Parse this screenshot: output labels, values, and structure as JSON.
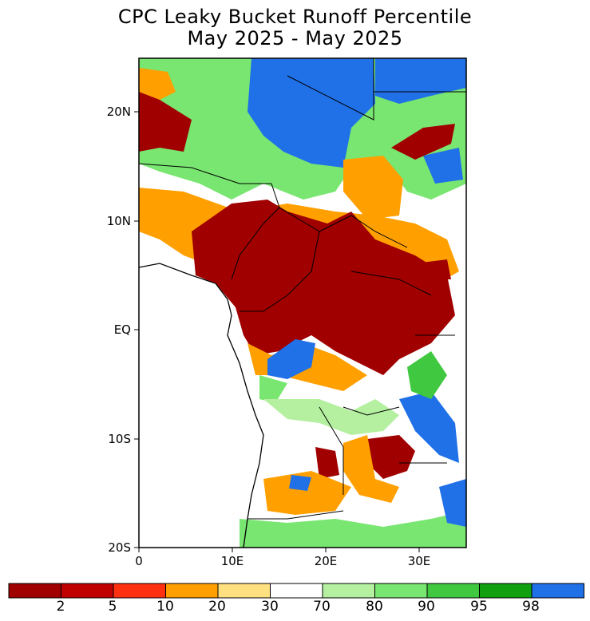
{
  "title": "CPC Leaky Bucket Runoff Percentile",
  "subtitle": "May 2025 - May 2025",
  "map": {
    "lon_range": [
      0,
      35
    ],
    "lat_range": [
      -20,
      25
    ],
    "y_ticks": [
      {
        "label": "20N",
        "lat": 20
      },
      {
        "label": "10N",
        "lat": 10
      },
      {
        "label": "EQ",
        "lat": 0
      },
      {
        "label": "10S",
        "lat": -10
      },
      {
        "label": "20S",
        "lat": -20
      }
    ],
    "x_ticks": [
      {
        "label": "0",
        "lon": 0
      },
      {
        "label": "10E",
        "lon": 10
      },
      {
        "label": "20E",
        "lon": 20
      },
      {
        "label": "30E",
        "lon": 30
      }
    ]
  },
  "colorbar": {
    "colors": [
      "#a00000",
      "#c00000",
      "#ff3010",
      "#ffa000",
      "#ffe080",
      "#ffffff",
      "#b4f0a0",
      "#78e670",
      "#40c840",
      "#10a010",
      "#2070e8"
    ],
    "labels": [
      "2",
      "5",
      "10",
      "20",
      "30",
      "70",
      "80",
      "90",
      "95",
      "98"
    ]
  }
}
